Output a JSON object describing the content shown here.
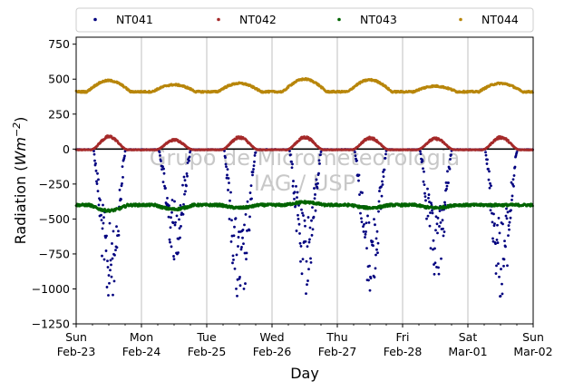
{
  "chart_data": {
    "type": "scatter",
    "xlabel": "Day",
    "ylabel": "Radiation",
    "ylabel_unit": "Wm",
    "ylabel_exp": "−2",
    "ylim": [
      -1250,
      800
    ],
    "yticks": [
      -1250,
      -1000,
      -750,
      -500,
      -250,
      0,
      250,
      500,
      750
    ],
    "ytick_labels": [
      "−1250",
      "−1000",
      "−750",
      "−500",
      "−250",
      "0",
      "250",
      "500",
      "750"
    ],
    "xlim_days": [
      0,
      7
    ],
    "x_ticks": [
      {
        "day": 0,
        "line1": "Sun",
        "line2": "Feb-23"
      },
      {
        "day": 1,
        "line1": "Mon",
        "line2": "Feb-24"
      },
      {
        "day": 2,
        "line1": "Tue",
        "line2": "Feb-25"
      },
      {
        "day": 3,
        "line1": "Wed",
        "line2": "Feb-26"
      },
      {
        "day": 4,
        "line1": "Thu",
        "line2": "Feb-27"
      },
      {
        "day": 5,
        "line1": "Fri",
        "line2": "Feb-28"
      },
      {
        "day": 6,
        "line1": "Sat",
        "line2": "Mar-01"
      },
      {
        "day": 7,
        "line1": "Sun",
        "line2": "Mar-02"
      }
    ],
    "grid": "vertical",
    "legend_placement": "top (above plot)",
    "watermark_line1": "Grupo de Micrometeorologia",
    "watermark_line2": "IAG / USP",
    "series": [
      {
        "name": "NT041",
        "color": "#00007f",
        "baseline": 0,
        "day_peak": [
          -1150,
          -800,
          -1200,
          -1050,
          -1050,
          -990,
          -1080
        ]
      },
      {
        "name": "NT042",
        "color": "#a52a2a",
        "baseline": 0,
        "day_peak": [
          100,
          75,
          95,
          95,
          90,
          85,
          95
        ]
      },
      {
        "name": "NT043",
        "color": "#006400",
        "baseline": -400,
        "day_peak": [
          -440,
          -430,
          -420,
          -380,
          -420,
          -420,
          -400
        ]
      },
      {
        "name": "NT044",
        "color": "#b8860b",
        "baseline": 410,
        "day_peak": [
          490,
          460,
          470,
          500,
          495,
          450,
          470
        ]
      }
    ]
  }
}
